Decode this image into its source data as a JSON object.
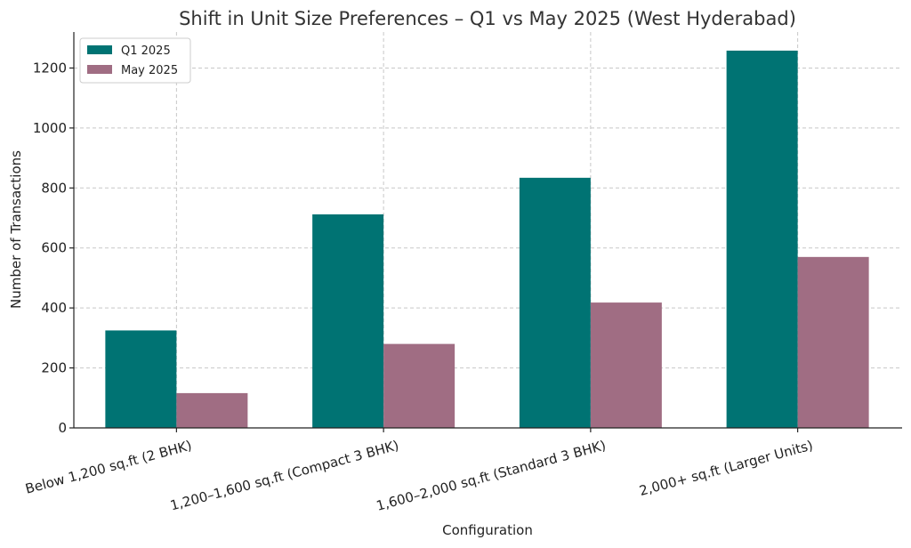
{
  "chart_data": {
    "type": "bar",
    "title": "Shift in Unit Size Preferences – Q1 vs May 2025 (West Hyderabad)",
    "xlabel": "Configuration",
    "ylabel": "Number of Transactions",
    "categories": [
      "Below 1,200 sq.ft (2 BHK)",
      "1,200–1,600 sq.ft (Compact 3 BHK)",
      "1,600–2,000 sq.ft (Standard 3 BHK)",
      "2,000+ sq.ft (Larger Units)"
    ],
    "series": [
      {
        "name": "Q1 2025",
        "color": "#007373",
        "values": [
          325,
          712,
          834,
          1258
        ]
      },
      {
        "name": "May 2025",
        "color": "#a06d83",
        "values": [
          116,
          280,
          418,
          570
        ]
      }
    ],
    "ylim": [
      0,
      1320
    ],
    "yticks": [
      0,
      200,
      400,
      600,
      800,
      1000,
      1200
    ],
    "grid": true,
    "legend_position": "top-left"
  }
}
